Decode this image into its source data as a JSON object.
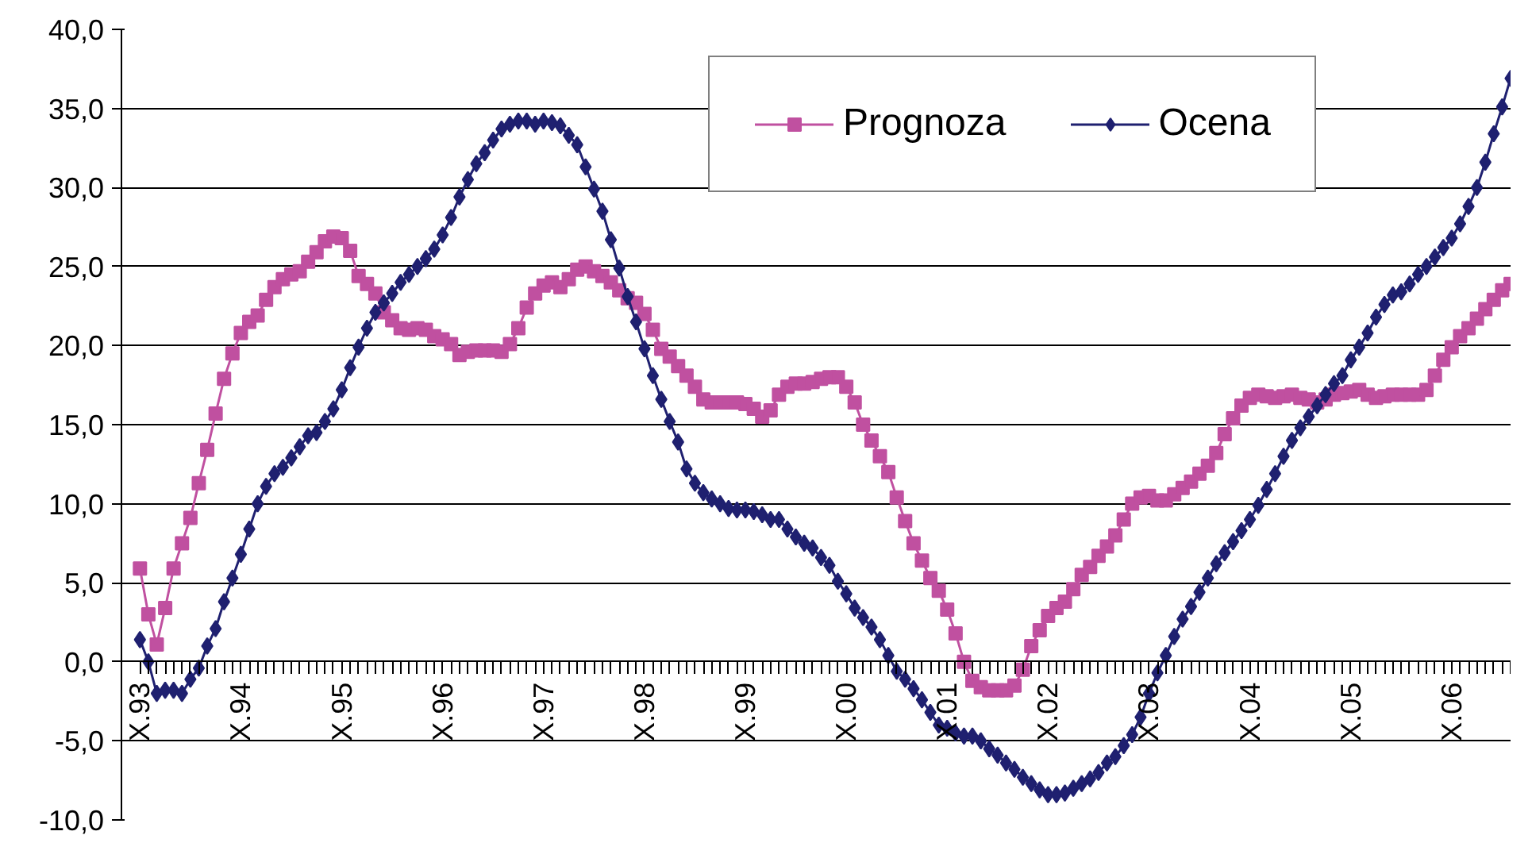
{
  "chart_data": {
    "type": "line",
    "categories": [
      "X.93",
      null,
      null,
      null,
      null,
      null,
      null,
      null,
      null,
      null,
      null,
      null,
      "X.94",
      null,
      null,
      null,
      null,
      null,
      null,
      null,
      null,
      null,
      null,
      null,
      "X.95",
      null,
      null,
      null,
      null,
      null,
      null,
      null,
      null,
      null,
      null,
      null,
      "X.96",
      null,
      null,
      null,
      null,
      null,
      null,
      null,
      null,
      null,
      null,
      null,
      "X.97",
      null,
      null,
      null,
      null,
      null,
      null,
      null,
      null,
      null,
      null,
      null,
      "X.98",
      null,
      null,
      null,
      null,
      null,
      null,
      null,
      null,
      null,
      null,
      null,
      "X.99",
      null,
      null,
      null,
      null,
      null,
      null,
      null,
      null,
      null,
      null,
      null,
      "X.00",
      null,
      null,
      null,
      null,
      null,
      null,
      null,
      null,
      null,
      null,
      null,
      "X.01",
      null,
      null,
      null,
      null,
      null,
      null,
      null,
      null,
      null,
      null,
      null,
      "X.02",
      null,
      null,
      null,
      null,
      null,
      null,
      null,
      null,
      null,
      null,
      null,
      "X.03",
      null,
      null,
      null,
      null,
      null,
      null,
      null,
      null,
      null,
      null,
      null,
      "X.04",
      null,
      null,
      null,
      null,
      null,
      null,
      null,
      null,
      null,
      null,
      null,
      "X.05",
      null,
      null,
      null,
      null,
      null,
      null,
      null,
      null,
      null,
      null,
      null,
      "X.06",
      null,
      null,
      null,
      null,
      null,
      null,
      null
    ],
    "series": [
      {
        "name": "Prognoza",
        "color": "#c050a0",
        "marker": "square",
        "values": [
          5.9,
          3.0,
          1.1,
          3.4,
          5.9,
          7.5,
          9.1,
          11.3,
          13.4,
          15.7,
          17.9,
          19.5,
          20.8,
          21.5,
          21.9,
          22.9,
          23.7,
          24.2,
          24.5,
          24.7,
          25.3,
          25.9,
          26.6,
          26.9,
          26.8,
          26.0,
          24.4,
          23.9,
          23.3,
          22.1,
          21.6,
          21.1,
          21.0,
          21.1,
          21.0,
          20.6,
          20.4,
          20.1,
          19.4,
          19.6,
          19.7,
          19.7,
          19.7,
          19.6,
          20.1,
          21.1,
          22.4,
          23.3,
          23.8,
          24.0,
          23.7,
          24.2,
          24.8,
          25.0,
          24.7,
          24.4,
          24.0,
          23.5,
          23.0,
          22.7,
          22.0,
          21.0,
          19.8,
          19.3,
          18.7,
          18.1,
          17.4,
          16.6,
          16.4,
          16.4,
          16.4,
          16.4,
          16.3,
          16.0,
          15.5,
          15.9,
          16.9,
          17.4,
          17.6,
          17.6,
          17.7,
          17.9,
          18.0,
          18.0,
          17.4,
          16.4,
          15.0,
          14.0,
          13.0,
          12.0,
          10.4,
          8.9,
          7.5,
          6.4,
          5.3,
          4.5,
          3.3,
          1.8,
          0.0,
          -1.2,
          -1.6,
          -1.8,
          -1.8,
          -1.8,
          -1.5,
          -0.5,
          1.0,
          2.0,
          2.9,
          3.4,
          3.8,
          4.6,
          5.5,
          6.0,
          6.7,
          7.3,
          8.0,
          9.0,
          10.0,
          10.4,
          10.5,
          10.2,
          10.2,
          10.6,
          11.0,
          11.4,
          11.9,
          12.4,
          13.2,
          14.4,
          15.4,
          16.2,
          16.7,
          16.9,
          16.8,
          16.7,
          16.8,
          16.9,
          16.7,
          16.6,
          16.4,
          16.6,
          16.9,
          17.0,
          17.1,
          17.2,
          16.9,
          16.7,
          16.8,
          16.9,
          16.9,
          16.9,
          16.9,
          17.2,
          18.1,
          19.1,
          19.9,
          20.6,
          21.1,
          21.7,
          22.3,
          22.9,
          23.5,
          23.9
        ]
      },
      {
        "name": "Ocena",
        "color": "#1f2070",
        "marker": "diamond",
        "values": [
          1.4,
          0.0,
          -2.0,
          -1.8,
          -1.8,
          -2.0,
          -1.1,
          -0.4,
          1.0,
          2.1,
          3.8,
          5.3,
          6.8,
          8.4,
          10.0,
          11.1,
          11.9,
          12.3,
          12.9,
          13.6,
          14.3,
          14.5,
          15.2,
          16.0,
          17.2,
          18.6,
          19.9,
          21.1,
          22.1,
          22.7,
          23.3,
          24.0,
          24.5,
          25.0,
          25.5,
          26.1,
          27.0,
          28.1,
          29.4,
          30.5,
          31.5,
          32.2,
          33.0,
          33.7,
          34.0,
          34.2,
          34.2,
          34.0,
          34.2,
          34.1,
          33.9,
          33.3,
          32.7,
          31.3,
          29.9,
          28.5,
          26.7,
          24.9,
          23.1,
          21.5,
          19.8,
          18.1,
          16.6,
          15.2,
          13.9,
          12.2,
          11.3,
          10.7,
          10.3,
          10.0,
          9.7,
          9.6,
          9.6,
          9.5,
          9.3,
          9.0,
          9.0,
          8.4,
          7.9,
          7.5,
          7.2,
          6.6,
          6.1,
          5.1,
          4.3,
          3.4,
          2.8,
          2.2,
          1.4,
          0.4,
          -0.6,
          -1.1,
          -1.7,
          -2.4,
          -3.2,
          -4.0,
          -4.2,
          -4.5,
          -4.7,
          -4.7,
          -5.0,
          -5.5,
          -5.9,
          -6.4,
          -6.8,
          -7.3,
          -7.7,
          -8.1,
          -8.4,
          -8.4,
          -8.3,
          -8.0,
          -7.7,
          -7.4,
          -7.0,
          -6.4,
          -6.0,
          -5.3,
          -4.6,
          -3.5,
          -2.0,
          -0.7,
          0.4,
          1.6,
          2.7,
          3.5,
          4.4,
          5.3,
          6.2,
          6.9,
          7.6,
          8.3,
          9.0,
          9.9,
          10.9,
          11.9,
          13.0,
          14.0,
          14.8,
          15.5,
          16.2,
          16.9,
          17.6,
          18.1,
          19.1,
          19.9,
          20.8,
          21.8,
          22.6,
          23.2,
          23.4,
          23.9,
          24.5,
          25.0,
          25.6,
          26.2,
          26.8,
          27.7,
          28.8,
          30.0,
          31.6,
          33.4,
          35.1,
          36.9
        ]
      }
    ],
    "ylim": [
      -10,
      40
    ],
    "yticks": [
      {
        "value": -10,
        "label": "-10,0"
      },
      {
        "value": -5,
        "label": "-5,0"
      },
      {
        "value": 0,
        "label": "0,0"
      },
      {
        "value": 5,
        "label": "5,0"
      },
      {
        "value": 10,
        "label": "10,0"
      },
      {
        "value": 15,
        "label": "15,0"
      },
      {
        "value": 20,
        "label": "20,0"
      },
      {
        "value": 25,
        "label": "25,0"
      },
      {
        "value": 30,
        "label": "30,0"
      },
      {
        "value": 35,
        "label": "35,0"
      },
      {
        "value": 40,
        "label": "40,0"
      }
    ],
    "grid": "y",
    "legend": "top right"
  }
}
